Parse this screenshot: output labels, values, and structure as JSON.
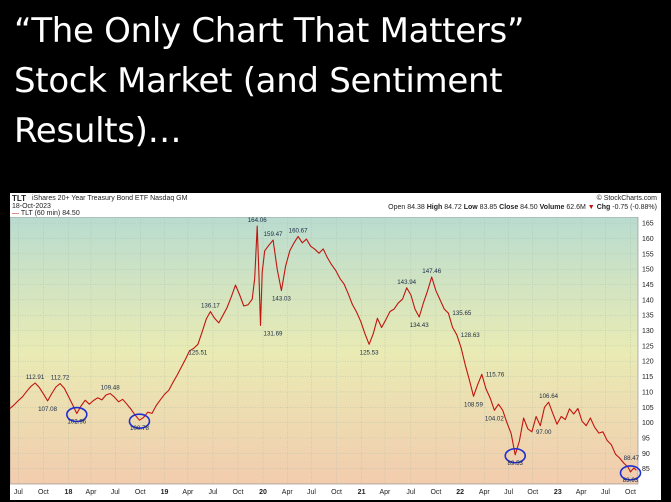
{
  "title": {
    "lines": [
      "“The Only Chart That Matters”",
      "Stock Market (and Sentiment",
      "Results)…"
    ]
  },
  "header": {
    "symbol": "TLT",
    "name": "iShares 20+ Year Treasury Bond ETF",
    "exchange": "Nasdaq GM",
    "date": "18-Oct-2023",
    "series_label": "TLT (60 min) 84.50",
    "source": "© StockCharts.com",
    "open_label": "Open",
    "open": "84.38",
    "high_label": "High",
    "high": "84.72",
    "low_label": "Low",
    "low": "83.85",
    "close_label": "Close",
    "close": "84.50",
    "volume_label": "Volume",
    "volume": "62.6M",
    "chg_label": "Chg",
    "chg": "-0.75 (-0.88%)",
    "chg_arrow": "▼"
  },
  "colors": {
    "line": "#c0150f",
    "circle": "#1f2fd0",
    "bg_top": "#b9dcd0",
    "bg_mid": "#e9ebb4",
    "bg_bottom": "#f2ccae"
  },
  "chart_data": {
    "type": "line",
    "ylim": [
      80,
      167
    ],
    "y_ticks": [
      85,
      90,
      95,
      100,
      105,
      110,
      115,
      120,
      125,
      130,
      135,
      140,
      145,
      150,
      155,
      160,
      165
    ],
    "x_ticks": [
      {
        "t": 1.0,
        "label": "Jul"
      },
      {
        "t": 4.0,
        "label": "Oct"
      },
      {
        "t": 7.0,
        "label": "18"
      },
      {
        "t": 9.7,
        "label": "Apr"
      },
      {
        "t": 12.6,
        "label": "Jul"
      },
      {
        "t": 15.6,
        "label": "Oct"
      },
      {
        "t": 18.5,
        "label": "19"
      },
      {
        "t": 21.3,
        "label": "Apr"
      },
      {
        "t": 24.3,
        "label": "Jul"
      },
      {
        "t": 27.3,
        "label": "Oct"
      },
      {
        "t": 30.3,
        "label": "20"
      },
      {
        "t": 33.2,
        "label": "Apr"
      },
      {
        "t": 36.1,
        "label": "Jul"
      },
      {
        "t": 39.1,
        "label": "Oct"
      },
      {
        "t": 42.1,
        "label": "21"
      },
      {
        "t": 44.9,
        "label": "Apr"
      },
      {
        "t": 48.0,
        "label": "Jul"
      },
      {
        "t": 51.0,
        "label": "Oct"
      },
      {
        "t": 53.9,
        "label": "22"
      },
      {
        "t": 56.8,
        "label": "Apr"
      },
      {
        "t": 59.7,
        "label": "Jul"
      },
      {
        "t": 62.6,
        "label": "Oct"
      },
      {
        "t": 65.6,
        "label": "23"
      },
      {
        "t": 68.4,
        "label": "Apr"
      },
      {
        "t": 71.3,
        "label": "Jul"
      },
      {
        "t": 74.3,
        "label": "Oct"
      }
    ],
    "x_range": [
      0,
      75.2
    ],
    "series": [
      {
        "points": [
          [
            0,
            104.6
          ],
          [
            0.5,
            105.8
          ],
          [
            1,
            107.2
          ],
          [
            1.5,
            108.4
          ],
          [
            2,
            110.2
          ],
          [
            2.5,
            111.8
          ],
          [
            3,
            112.91
          ],
          [
            3.5,
            111.5
          ],
          [
            4,
            109.4
          ],
          [
            4.5,
            107.08
          ],
          [
            5,
            109.5
          ],
          [
            5.5,
            111.6
          ],
          [
            6,
            112.72
          ],
          [
            6.5,
            111.2
          ],
          [
            7,
            108.5
          ],
          [
            7.5,
            105.8
          ],
          [
            8,
            102.96
          ],
          [
            8.5,
            105.4
          ],
          [
            9,
            107.3
          ],
          [
            9.5,
            106.0
          ],
          [
            10,
            107.2
          ],
          [
            10.5,
            108.1
          ],
          [
            11,
            107.4
          ],
          [
            11.5,
            109.0
          ],
          [
            12,
            109.48
          ],
          [
            12.5,
            108.3
          ],
          [
            13,
            106.8
          ],
          [
            13.5,
            107.6
          ],
          [
            14,
            106.0
          ],
          [
            14.5,
            104.3
          ],
          [
            15,
            102.4
          ],
          [
            15.5,
            100.78
          ],
          [
            16,
            101.7
          ],
          [
            16.5,
            103.4
          ],
          [
            17,
            103.0
          ],
          [
            17.5,
            105.5
          ],
          [
            18,
            107.4
          ],
          [
            18.5,
            109.2
          ],
          [
            19,
            110.5
          ],
          [
            19.5,
            113.0
          ],
          [
            20,
            115.4
          ],
          [
            20.5,
            118.0
          ],
          [
            21,
            120.6
          ],
          [
            21.5,
            123.4
          ],
          [
            22,
            124.2
          ],
          [
            22.5,
            125.51
          ],
          [
            23,
            129.5
          ],
          [
            23.5,
            133.8
          ],
          [
            24,
            136.17
          ],
          [
            24.5,
            134.0
          ],
          [
            25,
            132.5
          ],
          [
            25.5,
            135.0
          ],
          [
            26,
            137.5
          ],
          [
            26.5,
            141.0
          ],
          [
            27,
            144.8
          ],
          [
            27.5,
            141.6
          ],
          [
            28,
            138.0
          ],
          [
            28.5,
            138.4
          ],
          [
            29,
            140.2
          ],
          [
            29.3,
            147.0
          ],
          [
            29.6,
            164.06
          ],
          [
            29.8,
            148.5
          ],
          [
            30.0,
            131.69
          ],
          [
            30.2,
            149.0
          ],
          [
            30.5,
            156.0
          ],
          [
            31,
            157.8
          ],
          [
            31.5,
            159.47
          ],
          [
            32,
            150.0
          ],
          [
            32.5,
            143.03
          ],
          [
            33,
            151.0
          ],
          [
            33.5,
            156.0
          ],
          [
            34,
            158.5
          ],
          [
            34.5,
            160.67
          ],
          [
            35,
            158.6
          ],
          [
            35.5,
            159.8
          ],
          [
            36,
            157.5
          ],
          [
            36.5,
            156.5
          ],
          [
            37,
            155.2
          ],
          [
            37.5,
            156.6
          ],
          [
            38,
            153.8
          ],
          [
            38.5,
            151.5
          ],
          [
            39,
            149.6
          ],
          [
            39.5,
            147.0
          ],
          [
            40,
            145.2
          ],
          [
            40.5,
            142.0
          ],
          [
            41,
            138.5
          ],
          [
            41.5,
            136.0
          ],
          [
            42,
            133.0
          ],
          [
            42.5,
            129.0
          ],
          [
            43,
            125.53
          ],
          [
            43.5,
            129.0
          ],
          [
            44,
            134.0
          ],
          [
            44.5,
            131.0
          ],
          [
            45,
            133.5
          ],
          [
            45.5,
            136.2
          ],
          [
            46,
            137.0
          ],
          [
            46.5,
            139.0
          ],
          [
            47,
            140.2
          ],
          [
            47.5,
            143.94
          ],
          [
            48,
            141.6
          ],
          [
            48.5,
            137.0
          ],
          [
            49,
            134.43
          ],
          [
            49.5,
            139.0
          ],
          [
            50,
            143.0
          ],
          [
            50.5,
            147.46
          ],
          [
            51,
            143.0
          ],
          [
            51.5,
            140.0
          ],
          [
            52,
            137.0
          ],
          [
            52.5,
            135.65
          ],
          [
            53,
            131.0
          ],
          [
            53.5,
            128.63
          ],
          [
            54,
            124.5
          ],
          [
            54.5,
            119.0
          ],
          [
            55,
            114.0
          ],
          [
            55.5,
            108.59
          ],
          [
            56,
            112.4
          ],
          [
            56.5,
            115.76
          ],
          [
            57,
            111.0
          ],
          [
            57.5,
            108.0
          ],
          [
            58,
            104.02
          ],
          [
            58.5,
            106.0
          ],
          [
            59,
            104.0
          ],
          [
            59.5,
            100.0
          ],
          [
            60,
            96.5
          ],
          [
            60.5,
            89.53
          ],
          [
            61,
            94.0
          ],
          [
            61.5,
            101.5
          ],
          [
            62,
            98.0
          ],
          [
            62.5,
            97.0
          ],
          [
            63,
            102.0
          ],
          [
            63.5,
            99.0
          ],
          [
            64,
            105.0
          ],
          [
            64.5,
            106.64
          ],
          [
            65,
            103.0
          ],
          [
            65.5,
            99.5
          ],
          [
            66,
            102.0
          ],
          [
            66.5,
            101.0
          ],
          [
            67,
            104.5
          ],
          [
            67.5,
            102.8
          ],
          [
            68,
            104.6
          ],
          [
            68.5,
            100.5
          ],
          [
            69,
            99.0
          ],
          [
            69.5,
            101.5
          ],
          [
            70,
            98.5
          ],
          [
            70.5,
            96.6
          ],
          [
            71,
            97.0
          ],
          [
            71.5,
            94.2
          ],
          [
            72,
            92.8
          ],
          [
            72.5,
            89.7
          ],
          [
            73,
            88.47
          ],
          [
            73.5,
            86.8
          ],
          [
            74,
            85.5
          ],
          [
            74.3,
            83.93
          ],
          [
            74.7,
            85.2
          ],
          [
            75.0,
            84.5
          ]
        ]
      }
    ],
    "annotations": [
      {
        "t": 3.0,
        "y": 112.91,
        "label": "112.91",
        "pos": "above"
      },
      {
        "t": 4.5,
        "y": 107.08,
        "label": "107.08",
        "pos": "below"
      },
      {
        "t": 6.0,
        "y": 112.72,
        "label": "112.72",
        "pos": "above"
      },
      {
        "t": 8.0,
        "y": 102.96,
        "label": "102.96",
        "pos": "below"
      },
      {
        "t": 12.0,
        "y": 109.48,
        "label": "109.48",
        "pos": "above"
      },
      {
        "t": 15.5,
        "y": 100.78,
        "label": "100.78",
        "pos": "below"
      },
      {
        "t": 22.5,
        "y": 125.51,
        "label": "125.51",
        "pos": "below"
      },
      {
        "t": 24.0,
        "y": 136.17,
        "label": "136.17",
        "pos": "above"
      },
      {
        "t": 29.6,
        "y": 164.06,
        "label": "164.06",
        "pos": "above"
      },
      {
        "t": 31.5,
        "y": 159.47,
        "label": "159.47",
        "pos": "above"
      },
      {
        "t": 30.0,
        "y": 131.69,
        "label": "131.69",
        "pos": "below-right"
      },
      {
        "t": 32.5,
        "y": 143.03,
        "label": "143.03",
        "pos": "below"
      },
      {
        "t": 34.5,
        "y": 160.67,
        "label": "160.67",
        "pos": "above"
      },
      {
        "t": 43.0,
        "y": 125.53,
        "label": "125.53",
        "pos": "below"
      },
      {
        "t": 47.5,
        "y": 143.94,
        "label": "143.94",
        "pos": "above"
      },
      {
        "t": 49.0,
        "y": 134.43,
        "label": "134.43",
        "pos": "below"
      },
      {
        "t": 50.5,
        "y": 147.46,
        "label": "147.46",
        "pos": "above"
      },
      {
        "t": 52.5,
        "y": 135.65,
        "label": "135.65",
        "pos": "right"
      },
      {
        "t": 53.5,
        "y": 128.63,
        "label": "128.63",
        "pos": "right"
      },
      {
        "t": 56.5,
        "y": 115.76,
        "label": "115.76",
        "pos": "right"
      },
      {
        "t": 55.5,
        "y": 108.59,
        "label": "108.59",
        "pos": "below"
      },
      {
        "t": 58.0,
        "y": 104.02,
        "label": "104.02",
        "pos": "below"
      },
      {
        "t": 60.5,
        "y": 89.53,
        "label": "89.53",
        "pos": "below"
      },
      {
        "t": 62.5,
        "y": 97.0,
        "label": "97.00",
        "pos": "right"
      },
      {
        "t": 64.5,
        "y": 106.64,
        "label": "106.64",
        "pos": "above"
      },
      {
        "t": 73.0,
        "y": 88.47,
        "label": "88.47",
        "pos": "right"
      },
      {
        "t": 74.3,
        "y": 83.93,
        "label": "83.93",
        "pos": "below"
      }
    ],
    "circles": [
      {
        "t": 8.0,
        "y": 102.96
      },
      {
        "t": 15.5,
        "y": 100.78
      },
      {
        "t": 60.5,
        "y": 89.53
      },
      {
        "t": 74.3,
        "y": 83.93
      }
    ]
  }
}
